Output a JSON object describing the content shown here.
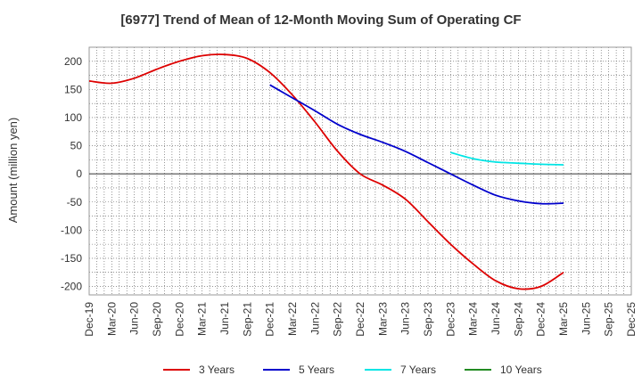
{
  "chart_data": {
    "type": "line",
    "title": "[6977]  Trend of Mean of 12-Month Moving Sum of Operating CF",
    "xlabel": "",
    "ylabel": "Amount (million yen)",
    "ylim": [
      -215,
      225
    ],
    "yticks": [
      200,
      150,
      100,
      50,
      0,
      -50,
      -100,
      -150,
      -200
    ],
    "categories": [
      "Dec-19",
      "Mar-20",
      "Jun-20",
      "Sep-20",
      "Dec-20",
      "Mar-21",
      "Jun-21",
      "Sep-21",
      "Dec-21",
      "Mar-22",
      "Jun-22",
      "Sep-22",
      "Dec-22",
      "Mar-23",
      "Jun-23",
      "Sep-23",
      "Dec-23",
      "Mar-24",
      "Jun-24",
      "Sep-24",
      "Dec-24",
      "Mar-25",
      "Jun-25",
      "Sep-25",
      "Dec-25"
    ],
    "series": [
      {
        "name": "3 Years",
        "color": "#dd0000",
        "values": [
          165,
          161,
          170,
          186,
          200,
          210,
          212,
          205,
          180,
          140,
          92,
          40,
          0,
          -20,
          -45,
          -85,
          -125,
          -160,
          -190,
          -204,
          -200,
          -175,
          null,
          null,
          null
        ]
      },
      {
        "name": "5 Years",
        "color": "#0000cc",
        "values": [
          null,
          null,
          null,
          null,
          null,
          null,
          null,
          null,
          158,
          135,
          112,
          88,
          70,
          56,
          40,
          20,
          0,
          -20,
          -38,
          -48,
          -53,
          -52,
          null,
          null,
          null
        ]
      },
      {
        "name": "7 Years",
        "color": "#00e5e5",
        "values": [
          null,
          null,
          null,
          null,
          null,
          null,
          null,
          null,
          null,
          null,
          null,
          null,
          null,
          null,
          null,
          null,
          38,
          27,
          21,
          19,
          17,
          16,
          null,
          null,
          null
        ]
      },
      {
        "name": "10 Years",
        "color": "#228b22",
        "values": [
          null,
          null,
          null,
          null,
          null,
          null,
          null,
          null,
          null,
          null,
          null,
          null,
          null,
          null,
          null,
          null,
          null,
          null,
          null,
          null,
          null,
          null,
          null,
          null,
          null
        ]
      }
    ],
    "grid": true,
    "legend": "bottom"
  }
}
